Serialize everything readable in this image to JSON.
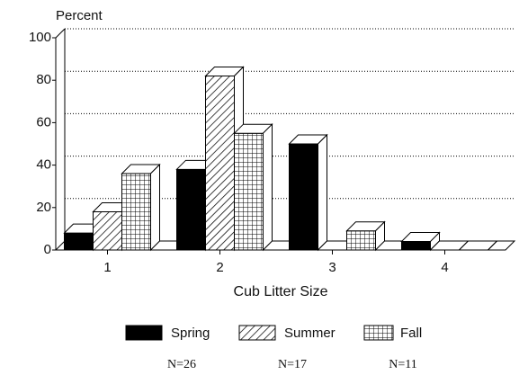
{
  "chart_data": {
    "type": "bar3d",
    "y_label": "Percent",
    "x_label": "Cub Litter Size",
    "categories": [
      "1",
      "2",
      "3",
      "4"
    ],
    "series": [
      {
        "name": "Spring",
        "color": "#000000",
        "pattern": "solid",
        "values": [
          8,
          38,
          50,
          4
        ]
      },
      {
        "name": "Summer",
        "color": "#000000",
        "pattern": "diagonal",
        "values": [
          18,
          82,
          0,
          0
        ]
      },
      {
        "name": "Fall",
        "color": "#000000",
        "pattern": "grid",
        "values": [
          36,
          55,
          9,
          0
        ]
      }
    ],
    "annotations": [
      "N=26",
      "N=17",
      "N=11"
    ],
    "ylim": [
      0,
      100
    ],
    "yticks": [
      0,
      20,
      40,
      60,
      80,
      100
    ],
    "grid": true
  }
}
